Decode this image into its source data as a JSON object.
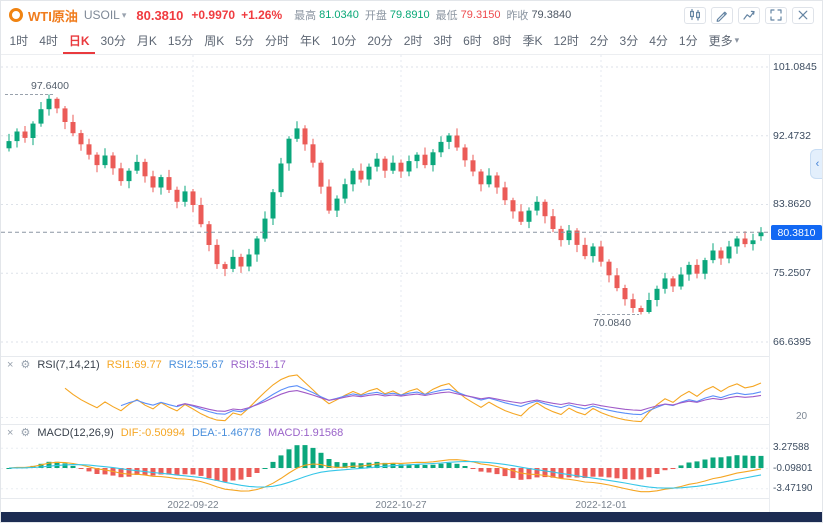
{
  "icons": {
    "dropdown_caret": "▾",
    "more_caret": "▾",
    "panel_close": "×",
    "panel_settings": "⚙",
    "expander_chevron": "‹"
  },
  "header": {
    "symbol_cn": "WTI原油",
    "symbol_code": "USOIL",
    "price": "80.3810",
    "change": "+0.9970",
    "change_pct": "+1.26%",
    "stats": [
      {
        "label": "最高",
        "value": "81.0340",
        "state": "up"
      },
      {
        "label": "开盘",
        "value": "79.8910",
        "state": "up"
      },
      {
        "label": "最低",
        "value": "79.3150",
        "state": "down"
      },
      {
        "label": "昨收",
        "value": "79.3840",
        "state": "flat"
      }
    ]
  },
  "timeframes": {
    "active": "日K",
    "items": [
      {
        "label": "1时"
      },
      {
        "label": "4时"
      },
      {
        "label": "日K"
      },
      {
        "label": "30分"
      },
      {
        "label": "月K"
      },
      {
        "label": "15分"
      },
      {
        "label": "周K"
      },
      {
        "label": "5分"
      },
      {
        "label": "分时"
      },
      {
        "label": "年K"
      },
      {
        "label": "10分"
      },
      {
        "label": "20分"
      },
      {
        "label": "2时"
      },
      {
        "label": "3时"
      },
      {
        "label": "6时"
      },
      {
        "label": "8时"
      },
      {
        "label": "季K"
      },
      {
        "label": "12时"
      },
      {
        "label": "2分"
      },
      {
        "label": "3分"
      },
      {
        "label": "4分"
      },
      {
        "label": "1分"
      },
      {
        "label": "更多",
        "caret": true
      }
    ]
  },
  "chart_data": {
    "type": "candlestick",
    "symbol": "USOIL",
    "timeframe": "日K",
    "colors": {
      "up": "#0BA77C",
      "down": "#EB5B57",
      "badge_blue": "#1268F3",
      "accent_red": "#E93A3E"
    },
    "y_axis": {
      "labels": [
        "101.0845",
        "92.4732",
        "83.8620",
        "75.2507",
        "66.6395"
      ]
    },
    "current_price_label": "80.3810",
    "annotations": {
      "high": "97.6400",
      "low": "70.0840"
    },
    "x_ticks": [
      {
        "label": "2022-09-22",
        "index": 23
      },
      {
        "label": "2022-10-27",
        "index": 49
      },
      {
        "label": "2022-12-01",
        "index": 74
      }
    ],
    "candles": [
      [
        90.9,
        92.7,
        90.5,
        91.8
      ],
      [
        91.8,
        93.4,
        91.0,
        93.0
      ],
      [
        93.0,
        93.7,
        91.6,
        92.2
      ],
      [
        92.2,
        94.3,
        91.3,
        94.0
      ],
      [
        94.0,
        96.7,
        93.6,
        95.8
      ],
      [
        95.8,
        97.64,
        95.0,
        97.1
      ],
      [
        97.1,
        97.3,
        95.3,
        95.9
      ],
      [
        95.9,
        96.2,
        93.3,
        94.2
      ],
      [
        94.2,
        95.1,
        92.4,
        92.8
      ],
      [
        92.8,
        93.2,
        90.6,
        91.4
      ],
      [
        91.4,
        92.1,
        89.5,
        90.1
      ],
      [
        90.1,
        90.4,
        87.9,
        88.8
      ],
      [
        88.8,
        90.9,
        88.4,
        90.0
      ],
      [
        90.0,
        90.4,
        87.6,
        88.4
      ],
      [
        88.4,
        89.1,
        86.2,
        86.8
      ],
      [
        86.8,
        88.4,
        85.9,
        88.1
      ],
      [
        88.1,
        90.1,
        87.7,
        89.2
      ],
      [
        89.2,
        89.6,
        86.6,
        87.4
      ],
      [
        87.4,
        88.1,
        85.4,
        86.0
      ],
      [
        86.0,
        87.6,
        85.1,
        87.3
      ],
      [
        87.3,
        88.2,
        85.3,
        85.7
      ],
      [
        85.7,
        86.1,
        83.4,
        84.2
      ],
      [
        84.2,
        86.2,
        83.6,
        85.5
      ],
      [
        85.5,
        85.8,
        82.9,
        83.8
      ],
      [
        83.8,
        84.7,
        81.0,
        81.4
      ],
      [
        81.4,
        81.8,
        78.0,
        78.8
      ],
      [
        78.8,
        79.5,
        75.8,
        76.4
      ],
      [
        76.4,
        76.7,
        74.9,
        75.8
      ],
      [
        75.8,
        78.2,
        75.4,
        77.3
      ],
      [
        77.3,
        77.7,
        75.3,
        76.1
      ],
      [
        76.1,
        78.3,
        75.5,
        77.6
      ],
      [
        77.6,
        79.9,
        76.7,
        79.6
      ],
      [
        79.6,
        83.0,
        79.2,
        82.1
      ],
      [
        82.1,
        85.8,
        81.3,
        85.4
      ],
      [
        85.4,
        89.7,
        84.8,
        89.0
      ],
      [
        89.0,
        92.4,
        88.1,
        92.1
      ],
      [
        92.1,
        94.3,
        91.7,
        93.4
      ],
      [
        93.4,
        93.8,
        90.6,
        91.4
      ],
      [
        91.4,
        92.1,
        88.5,
        89.1
      ],
      [
        89.1,
        89.4,
        85.2,
        86.1
      ],
      [
        86.1,
        87.0,
        82.7,
        83.1
      ],
      [
        83.1,
        85.0,
        82.3,
        84.6
      ],
      [
        84.6,
        87.1,
        84.0,
        86.4
      ],
      [
        86.4,
        88.4,
        85.5,
        88.1
      ],
      [
        88.1,
        89.0,
        86.6,
        87.0
      ],
      [
        87.0,
        89.0,
        86.2,
        88.6
      ],
      [
        88.6,
        90.3,
        88.0,
        89.6
      ],
      [
        89.6,
        89.9,
        87.2,
        88.1
      ],
      [
        88.1,
        90.0,
        87.7,
        89.1
      ],
      [
        89.1,
        89.5,
        87.2,
        88.0
      ],
      [
        88.0,
        90.0,
        87.4,
        89.3
      ],
      [
        89.3,
        90.4,
        88.4,
        90.1
      ],
      [
        90.1,
        91.0,
        88.4,
        88.8
      ],
      [
        88.8,
        90.8,
        88.0,
        90.4
      ],
      [
        90.4,
        92.4,
        89.8,
        91.7
      ],
      [
        91.7,
        92.8,
        90.8,
        92.5
      ],
      [
        92.5,
        93.4,
        90.6,
        91.0
      ],
      [
        91.0,
        91.4,
        88.6,
        89.4
      ],
      [
        89.4,
        90.1,
        87.4,
        88.0
      ],
      [
        88.0,
        88.3,
        85.5,
        86.4
      ],
      [
        86.4,
        88.4,
        86.0,
        87.5
      ],
      [
        87.5,
        87.9,
        85.2,
        86.0
      ],
      [
        86.0,
        86.7,
        83.8,
        84.4
      ],
      [
        84.4,
        84.7,
        82.1,
        83.0
      ],
      [
        83.0,
        83.9,
        81.3,
        81.7
      ],
      [
        81.7,
        83.5,
        80.9,
        83.1
      ],
      [
        83.1,
        84.9,
        82.5,
        84.2
      ],
      [
        84.2,
        84.5,
        81.5,
        82.4
      ],
      [
        82.4,
        83.3,
        80.4,
        80.8
      ],
      [
        80.8,
        81.2,
        78.6,
        79.4
      ],
      [
        79.4,
        81.3,
        78.8,
        80.6
      ],
      [
        80.6,
        80.9,
        77.9,
        78.8
      ],
      [
        78.8,
        79.7,
        77.0,
        77.4
      ],
      [
        77.4,
        79.0,
        76.6,
        78.6
      ],
      [
        78.6,
        79.3,
        76.1,
        76.7
      ],
      [
        76.7,
        77.0,
        74.1,
        75.0
      ],
      [
        75.0,
        75.9,
        73.0,
        73.4
      ],
      [
        73.4,
        73.8,
        71.2,
        72.0
      ],
      [
        72.0,
        72.7,
        70.3,
        70.9
      ],
      [
        70.9,
        71.2,
        70.08,
        70.4
      ],
      [
        70.4,
        72.8,
        70.2,
        71.9
      ],
      [
        71.9,
        73.7,
        71.1,
        73.3
      ],
      [
        73.3,
        75.3,
        72.7,
        74.6
      ],
      [
        74.6,
        74.9,
        72.9,
        73.6
      ],
      [
        73.6,
        76.0,
        73.2,
        75.1
      ],
      [
        75.1,
        76.7,
        74.3,
        76.3
      ],
      [
        76.3,
        77.0,
        74.6,
        75.2
      ],
      [
        75.2,
        77.2,
        74.5,
        76.9
      ],
      [
        76.9,
        79.0,
        76.5,
        78.1
      ],
      [
        78.1,
        78.5,
        76.3,
        77.1
      ],
      [
        77.1,
        79.3,
        76.5,
        78.6
      ],
      [
        78.6,
        79.9,
        77.7,
        79.6
      ],
      [
        79.6,
        80.5,
        78.5,
        78.9
      ],
      [
        78.9,
        80.2,
        78.1,
        79.38
      ],
      [
        79.89,
        81.03,
        79.32,
        80.38
      ]
    ],
    "indicators": {
      "rsi": {
        "title": "RSI(7,14,21)",
        "periods": [
          7,
          14,
          21
        ],
        "values_text": [
          "RSI1:69.77",
          "RSI2:55.67",
          "RSI3:51.17"
        ],
        "colors": [
          "#F5A623",
          "#5B8FF9",
          "#A05BC8"
        ],
        "grid_label": "20"
      },
      "macd": {
        "title": "MACD(12,26,9)",
        "params": [
          12,
          26,
          9
        ],
        "values_text": [
          "DIF:-0.50994",
          "DEA:-1.46778",
          "MACD:1.91568"
        ],
        "dif_color": "#F5A623",
        "dea_color": "#36C6E8",
        "axis_labels": [
          "3.27588",
          "-0.09801",
          "-3.47190"
        ]
      }
    }
  }
}
